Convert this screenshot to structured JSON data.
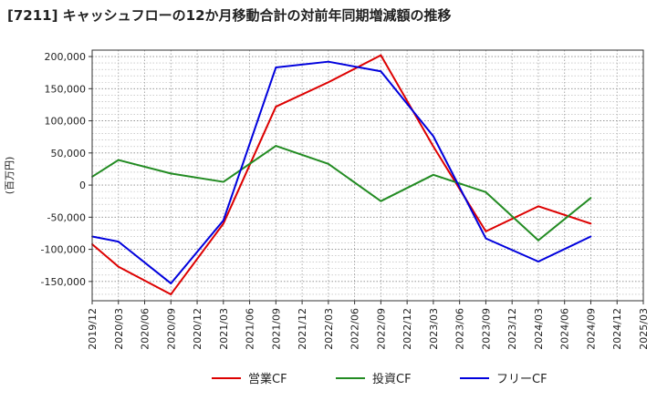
{
  "chart_data": {
    "type": "line",
    "title": "[7211]  キャッシュフローの12か月移動合計の対前年同期増減額の推移",
    "ylabel": "(百万円)",
    "xlabel": "",
    "ylim": [
      -180000,
      210000
    ],
    "yticks": [
      200000,
      150000,
      100000,
      50000,
      0,
      -50000,
      -100000,
      -150000
    ],
    "ytick_labels": [
      "200,000",
      "150,000",
      "100,000",
      "50,000",
      "0",
      "-50,000",
      "-100,000",
      "-150,000"
    ],
    "categories": [
      "2019/12",
      "2020/03",
      "2020/06",
      "2020/09",
      "2020/12",
      "2021/03",
      "2021/06",
      "2021/09",
      "2021/12",
      "2022/03",
      "2022/06",
      "2022/09",
      "2022/12",
      "2023/03",
      "2023/06",
      "2023/09",
      "2023/12",
      "2024/03",
      "2024/06",
      "2024/09",
      "2024/12",
      "2025/03"
    ],
    "grid": true,
    "legend_position": "bottom",
    "series": [
      {
        "name": "営業CF",
        "color": "#dd0000",
        "values": [
          -92000,
          -127000,
          null,
          -170000,
          null,
          -60000,
          null,
          122000,
          null,
          160000,
          null,
          202000,
          null,
          60000,
          null,
          -72000,
          null,
          -33000,
          null,
          -60000,
          null,
          null
        ]
      },
      {
        "name": "投資CF",
        "color": "#228b22",
        "values": [
          13000,
          39000,
          null,
          18000,
          null,
          5000,
          null,
          61000,
          null,
          33000,
          null,
          -25000,
          null,
          16000,
          null,
          -11000,
          null,
          -86000,
          null,
          -20000,
          null,
          null
        ]
      },
      {
        "name": "フリーCF",
        "color": "#0000dd",
        "values": [
          -80000,
          -88000,
          null,
          -153000,
          null,
          -55000,
          null,
          183000,
          null,
          192000,
          null,
          177000,
          null,
          76000,
          null,
          -83000,
          null,
          -119000,
          null,
          -80000,
          null,
          null
        ]
      }
    ]
  }
}
